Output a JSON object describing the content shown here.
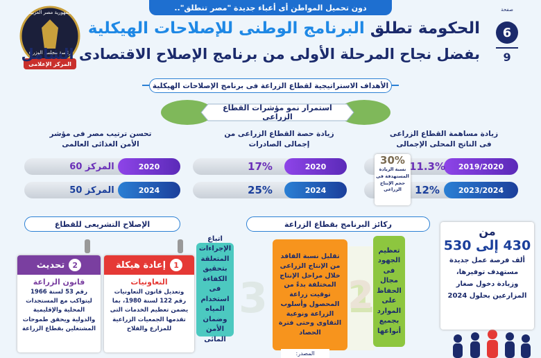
{
  "banner": "دون تحميل المواطن أى أعباء جديدة \"مصر تنطلق\"..",
  "page": {
    "label": "صفحة",
    "number": "6",
    "total": "9"
  },
  "logo": {
    "country": "جمهورية مصر العربية",
    "cabinet": "رئاسة مجلس الوزراء",
    "center": "المركز الإعلامى"
  },
  "header": {
    "title_lead": "الحكومة تطلق",
    "title_main": "البرنامج الوطنى للإصلاحات الهيكلية",
    "subtitle": "بفضل نجاح المرحلة الأولى من برنامج الإصلاح الاقتصادى الشامل"
  },
  "section_title": "الأهداف الاستراتيجية لقطاع الزراعة فى برنامج الإصلاحات الهيكلية",
  "indicators": {
    "title": "استمرار نمو مؤشرات القطاع الزراعى",
    "goals": [
      {
        "title": "زيادة مساهمة القطاع الزراعى فى الناتج المحلى الإجمالى",
        "rows": [
          {
            "period": "2019/2020",
            "value": "11.3%"
          },
          {
            "period": "2023/2024",
            "value": "12%"
          }
        ]
      },
      {
        "title": "زيادة حصة القطاع الزراعى من إجمالى الصادرات",
        "rows": [
          {
            "period": "2020",
            "value": "17%"
          },
          {
            "period": "2024",
            "value": "25%"
          }
        ]
      },
      {
        "title": "تحسن ترتيب مصر فى مؤشر الأمن الغذائى العالمى",
        "rows": [
          {
            "period": "2020",
            "value": "المركز 60"
          },
          {
            "period": "2024",
            "value": "المركز 50"
          }
        ]
      }
    ],
    "note": {
      "value": "30%",
      "text": "نسبة الزيادة المستهدفة فى حجم الإنتاج الزراعى"
    }
  },
  "legislative": {
    "title": "الإصلاح التشريعى للقطاع",
    "cards": [
      {
        "number": "1",
        "label": "إعادة هيكلة",
        "subject": "التعاونيات",
        "text": "وتعديل قانون التعاونيات رقم 122 لسنة 1980، بما يضمن تعظيم الخدمات التى تقدمها الجمعيات الزراعية للمزارع والفلاح"
      },
      {
        "number": "2",
        "label": "تحديث",
        "subject": "قانون الزراعة",
        "text": "رقم 53 لسنة 1966 ليتواكب مع المستجدات المحلية والإقليمية والدولية ويحقق طموحات المشتغلين بقطاع الزراعة"
      }
    ]
  },
  "pillars": {
    "title": "ركائز البرنامج بقطاع الزراعة",
    "items": [
      {
        "number": "1",
        "text": "تعظيم الجهود فى مجال الحفاظ على الموارد بجميع أنواعها"
      },
      {
        "number": "2",
        "text": "تقليل نسبة الفاقد من الإنتاج الزراعى خلال مراحل الإنتاج المختلفة بدءً من توقيت زراعة المحصول وأسلوب الزراعة ونوعية التقاوى وحتى فترة الحصاد"
      },
      {
        "number": "3",
        "text": "اتباع الإجراءات المتعلقة بتحقيق الكفاءة فى استخدام المياه وضمان الأمن المائى"
      }
    ]
  },
  "jobs": {
    "prefix": "من",
    "range": "430 إلى 530",
    "text": "ألف فرصة عمل جديدة مستهدف توفيرها، وزيادة دخول صغار المزارعين بحلول 2024"
  },
  "source": "المصدر:"
}
